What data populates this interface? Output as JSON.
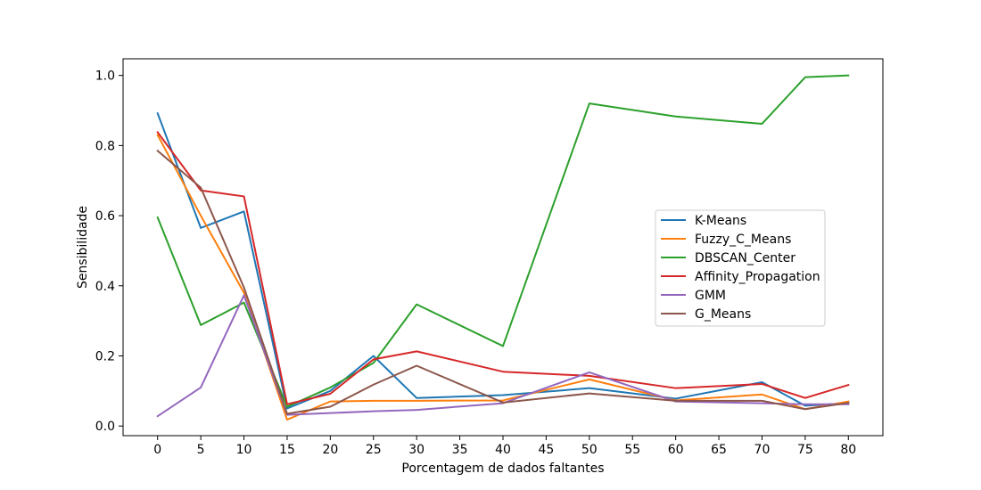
{
  "chart_data": {
    "type": "line",
    "xlabel": "Porcentagem de dados faltantes",
    "ylabel": "Sensibilidade",
    "xlim": [
      -4,
      84
    ],
    "ylim": [
      -0.0275,
      1.0475
    ],
    "xticks": [
      0,
      5,
      10,
      15,
      20,
      25,
      30,
      35,
      40,
      45,
      50,
      55,
      60,
      65,
      70,
      75,
      80
    ],
    "yticks": [
      0.0,
      0.2,
      0.4,
      0.6,
      0.8,
      1.0
    ],
    "ytick_labels": [
      "0.0",
      "0.2",
      "0.4",
      "0.6",
      "0.8",
      "1.0"
    ],
    "grid": false,
    "legend_position": "center-right",
    "x": [
      0,
      5,
      10,
      15,
      20,
      25,
      30,
      40,
      50,
      60,
      70,
      75,
      80
    ],
    "series": [
      {
        "name": "K-Means",
        "color": "#1f77b4",
        "values": [
          0.892,
          0.565,
          0.612,
          0.05,
          0.1,
          0.2,
          0.08,
          0.088,
          0.108,
          0.078,
          0.125,
          0.058,
          0.065
        ]
      },
      {
        "name": "Fuzzy_C_Means",
        "color": "#ff7f0e",
        "values": [
          0.83,
          0.6,
          0.38,
          0.018,
          0.07,
          0.072,
          0.072,
          0.073,
          0.133,
          0.073,
          0.09,
          0.048,
          0.07
        ]
      },
      {
        "name": "DBSCAN_Center",
        "color": "#2ca02c",
        "values": [
          0.595,
          0.288,
          0.352,
          0.055,
          0.11,
          0.18,
          0.347,
          0.228,
          0.92,
          0.883,
          0.862,
          0.995,
          1.0
        ]
      },
      {
        "name": "Affinity_Propagation",
        "color": "#d62728",
        "values": [
          0.838,
          0.672,
          0.655,
          0.062,
          0.092,
          0.19,
          0.213,
          0.155,
          0.143,
          0.108,
          0.12,
          0.08,
          0.117
        ]
      },
      {
        "name": "GMM",
        "color": "#9467bd",
        "values": [
          0.028,
          0.11,
          0.373,
          0.032,
          0.037,
          0.042,
          0.046,
          0.065,
          0.153,
          0.07,
          0.065,
          0.062,
          0.062
        ]
      },
      {
        "name": "G_Means",
        "color": "#8c564b",
        "values": [
          0.785,
          0.68,
          0.395,
          0.035,
          0.055,
          0.118,
          0.172,
          0.067,
          0.093,
          0.072,
          0.072,
          0.048,
          0.066
        ]
      }
    ]
  }
}
